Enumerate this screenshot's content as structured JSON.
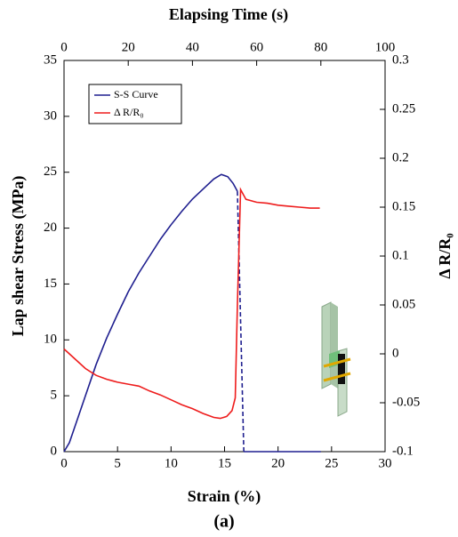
{
  "chart_data": {
    "type": "line",
    "caption": "(a)",
    "xlabel": "Strain (%)",
    "x2label": "Elapsing Time (s)",
    "ylabel": "Lap shear Stress (MPa)",
    "y2label": "Δ R/R₀",
    "xlim": [
      0,
      30
    ],
    "xticks": [
      0,
      5,
      10,
      15,
      20,
      25,
      30
    ],
    "x2lim": [
      0,
      100
    ],
    "x2ticks": [
      0,
      20,
      40,
      60,
      80,
      100
    ],
    "ylim": [
      0,
      35
    ],
    "yticks": [
      0,
      5,
      10,
      15,
      20,
      25,
      30,
      35
    ],
    "y2lim": [
      -0.1,
      0.3
    ],
    "y2ticks": [
      -0.1,
      -0.05,
      0,
      0.05,
      0.1,
      0.15,
      0.2,
      0.25,
      0.3
    ],
    "legend": "upper left",
    "series": [
      {
        "name": "S-S Curve",
        "color": "#1f1f8f",
        "dashed_segments": [
          [
            19,
            20
          ]
        ],
        "x": [
          0,
          0.5,
          1,
          2,
          3,
          4,
          5,
          6,
          7,
          8,
          9,
          10,
          11,
          12,
          13,
          14,
          14.7,
          15.3,
          15.8,
          16.2,
          16.8,
          20,
          24
        ],
        "values": [
          0,
          0.8,
          2.2,
          5,
          7.8,
          10.2,
          12.3,
          14.3,
          16,
          17.5,
          19,
          20.3,
          21.5,
          22.6,
          23.5,
          24.4,
          24.8,
          24.6,
          24.0,
          23.3,
          0,
          0,
          0
        ]
      },
      {
        "name": "Δ R/R₀",
        "color": "#ee1c1c",
        "axis": "y2",
        "x": [
          0,
          1,
          2,
          3,
          4,
          5,
          6,
          7,
          8,
          9,
          10,
          11,
          12,
          13,
          14,
          14.6,
          15.2,
          15.7,
          16,
          16.2,
          16.5,
          17,
          18,
          19,
          20,
          21,
          22,
          23,
          23.9
        ],
        "values": [
          0.005,
          -0.005,
          -0.015,
          -0.022,
          -0.026,
          -0.029,
          -0.031,
          -0.033,
          -0.038,
          -0.042,
          -0.047,
          -0.052,
          -0.056,
          -0.061,
          -0.065,
          -0.066,
          -0.064,
          -0.058,
          -0.045,
          0.05,
          0.168,
          0.158,
          0.155,
          0.154,
          0.152,
          0.151,
          0.15,
          0.149,
          0.149
        ]
      }
    ]
  }
}
